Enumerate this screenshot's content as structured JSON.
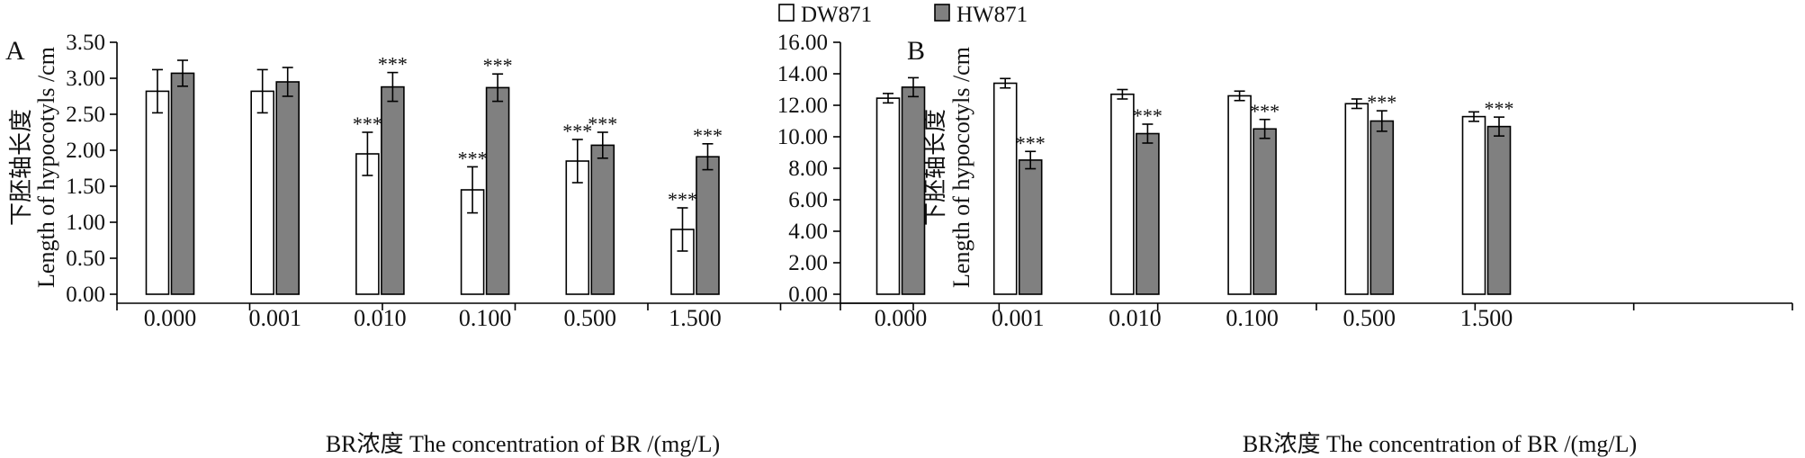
{
  "legend": {
    "items": [
      {
        "label": "DW871",
        "color": "#ffffff"
      },
      {
        "label": "HW871",
        "color": "#808080"
      }
    ]
  },
  "colors": {
    "axis": "#000000",
    "bar_edge": "#000000"
  },
  "chart_data": [
    {
      "type": "bar",
      "panel_label": "A",
      "categories": [
        "0.000",
        "0.001",
        "0.010",
        "0.100",
        "0.500",
        "1.500"
      ],
      "ylim": [
        0,
        3.5
      ],
      "yticks": [
        "0.00",
        "0.50",
        "1.00",
        "1.50",
        "2.00",
        "2.50",
        "3.00",
        "3.50"
      ],
      "ylabel_cn": "下胚轴长度",
      "ylabel_en": "Length of hypocotyls /cm",
      "xlabel": "BR浓度 The concentration of BR /(mg/L)",
      "series": [
        {
          "name": "DW871",
          "values": [
            2.82,
            2.82,
            1.95,
            1.45,
            1.85,
            0.9
          ],
          "errors": [
            0.3,
            0.3,
            0.3,
            0.32,
            0.3,
            0.3
          ],
          "annotations": [
            "",
            "",
            "***",
            "***",
            "***",
            "***"
          ]
        },
        {
          "name": "HW871",
          "values": [
            3.07,
            2.95,
            2.88,
            2.87,
            2.07,
            1.91
          ],
          "errors": [
            0.18,
            0.2,
            0.2,
            0.19,
            0.18,
            0.18
          ],
          "annotations": [
            "",
            "",
            "***",
            "***",
            "***",
            "***"
          ]
        }
      ]
    },
    {
      "type": "bar",
      "panel_label": "B",
      "categories": [
        "0.000",
        "0.001",
        "0.010",
        "0.100",
        "0.500",
        "1.500"
      ],
      "ylim": [
        0,
        16
      ],
      "yticks": [
        "0.00",
        "2.00",
        "4.00",
        "6.00",
        "8.00",
        "10.00",
        "12.00",
        "14.00",
        "16.00"
      ],
      "ylabel_cn": "下胚轴长度",
      "ylabel_en": "Length of hypocotyls /cm",
      "xlabel": "BR浓度 The concentration of BR /(mg/L)",
      "series": [
        {
          "name": "DW871",
          "values": [
            12.45,
            13.4,
            12.7,
            12.6,
            12.1,
            11.28
          ],
          "errors": [
            0.3,
            0.3,
            0.3,
            0.3,
            0.3,
            0.3
          ],
          "annotations": [
            "",
            "",
            "",
            "",
            "",
            ""
          ]
        },
        {
          "name": "HW871",
          "values": [
            13.15,
            8.52,
            10.2,
            10.5,
            11.0,
            10.65
          ],
          "errors": [
            0.6,
            0.55,
            0.6,
            0.6,
            0.65,
            0.6
          ],
          "annotations": [
            "",
            "***",
            "***",
            "***",
            "***",
            "***"
          ]
        }
      ]
    }
  ]
}
